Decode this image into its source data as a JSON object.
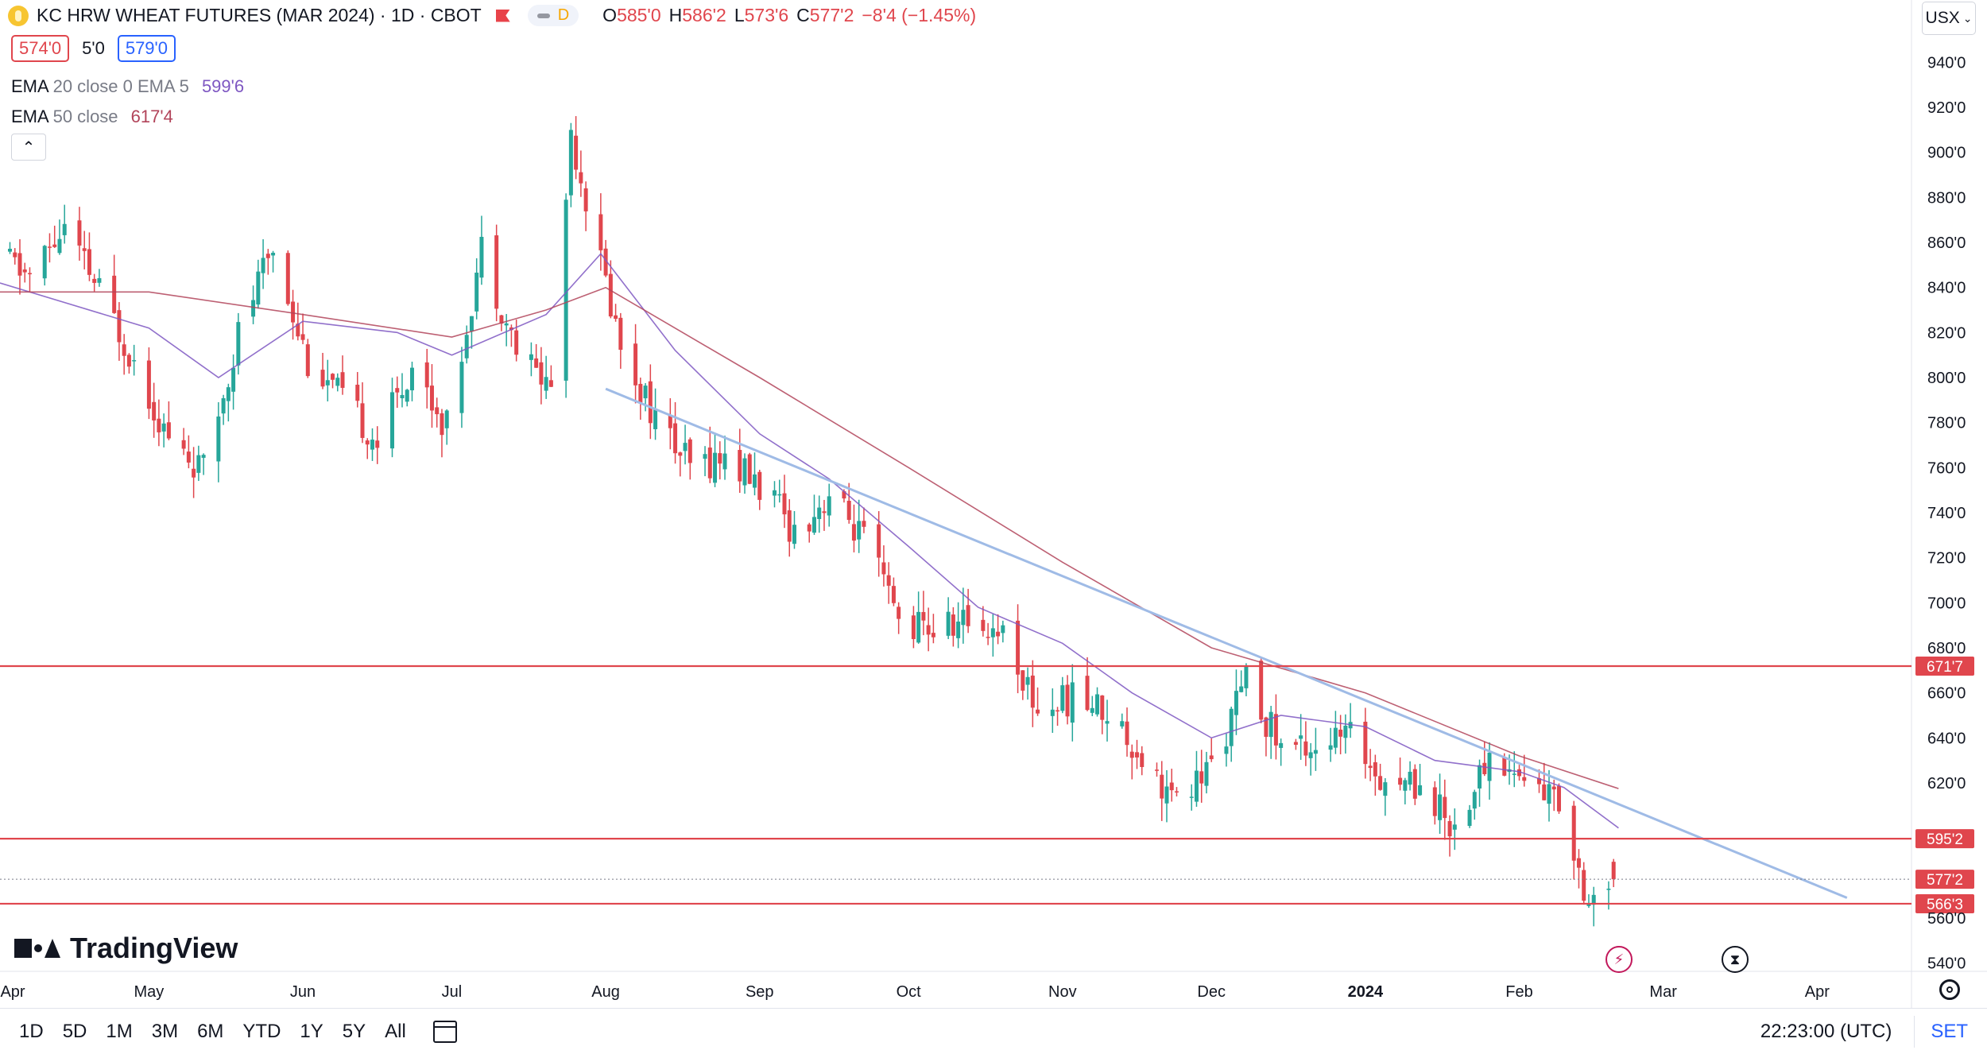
{
  "header": {
    "title": "KC HRW WHEAT FUTURES (MAR 2024) · 1D · CBOT",
    "status_letter": "D",
    "open_label": "O",
    "open": "585'0",
    "high_label": "H",
    "high": "586'2",
    "low_label": "L",
    "low": "573'6",
    "close_label": "C",
    "close": "577'2",
    "change": "−8'4 (−1.45%)"
  },
  "quote": {
    "bid": "574'0",
    "spread": "5'0",
    "ask": "579'0"
  },
  "indicators": [
    {
      "name": "EMA",
      "params": "20 close 0 EMA 5",
      "value": "599'6",
      "color": "#7e57c2"
    },
    {
      "name": "EMA",
      "params": "50 close",
      "value": "617'4",
      "color": "#b2445a"
    }
  ],
  "currency_button": "USX",
  "collapse_icon": "chevron-up-icon",
  "brand": "TradingView",
  "colors": {
    "up": "#26a69a",
    "down": "#e0464d",
    "level": "#e0464d",
    "trend": "#9fbbe6",
    "ema20": "#7e57c2",
    "ema50": "#b2445a"
  },
  "timeframes": [
    "1D",
    "5D",
    "1M",
    "3M",
    "6M",
    "YTD",
    "1Y",
    "5Y",
    "All"
  ],
  "footer": {
    "clock": "22:23:00 (UTC)",
    "set_label": "SET"
  },
  "chart_data": {
    "type": "candlestick",
    "title": "KC HRW WHEAT FUTURES (MAR 2024)",
    "y_unit": "cents/bushel",
    "ylim": [
      530,
      950
    ],
    "xlim": [
      "2023-04-01",
      "2024-04-20"
    ],
    "grid": false,
    "price_ticks": [
      "940'0",
      "920'0",
      "900'0",
      "880'0",
      "860'0",
      "840'0",
      "820'0",
      "800'0",
      "780'0",
      "760'0",
      "740'0",
      "720'0",
      "700'0",
      "680'0",
      "660'0",
      "640'0",
      "620'0",
      "600'0",
      "580'0",
      "560'0",
      "540'0"
    ],
    "time_ticks": [
      {
        "label": "Apr",
        "date": "2023-04-01"
      },
      {
        "label": "May",
        "date": "2023-05-01"
      },
      {
        "label": "Jun",
        "date": "2023-06-01"
      },
      {
        "label": "Jul",
        "date": "2023-07-01"
      },
      {
        "label": "Aug",
        "date": "2023-08-01"
      },
      {
        "label": "Sep",
        "date": "2023-09-01"
      },
      {
        "label": "Oct",
        "date": "2023-10-01"
      },
      {
        "label": "Nov",
        "date": "2023-11-01"
      },
      {
        "label": "Dec",
        "date": "2023-12-01"
      },
      {
        "label": "2024",
        "date": "2024-01-01",
        "bold": true
      },
      {
        "label": "Feb",
        "date": "2024-02-01"
      },
      {
        "label": "Mar",
        "date": "2024-03-01"
      },
      {
        "label": "Apr",
        "date": "2024-04-01"
      }
    ],
    "price_path": [
      [
        "2023-04-01",
        855
      ],
      [
        "2023-04-08",
        845
      ],
      [
        "2023-04-15",
        866
      ],
      [
        "2023-04-22",
        838
      ],
      [
        "2023-04-29",
        808
      ],
      [
        "2023-05-06",
        772
      ],
      [
        "2023-05-13",
        758
      ],
      [
        "2023-05-20",
        820
      ],
      [
        "2023-05-27",
        858
      ],
      [
        "2023-06-03",
        808
      ],
      [
        "2023-06-10",
        790
      ],
      [
        "2023-06-17",
        772
      ],
      [
        "2023-06-24",
        806
      ],
      [
        "2023-07-01",
        778
      ],
      [
        "2023-07-08",
        858
      ],
      [
        "2023-07-15",
        812
      ],
      [
        "2023-07-22",
        796
      ],
      [
        "2023-07-26",
        910
      ],
      [
        "2023-07-31",
        860
      ],
      [
        "2023-08-05",
        815
      ],
      [
        "2023-08-12",
        782
      ],
      [
        "2023-08-19",
        760
      ],
      [
        "2023-08-26",
        765
      ],
      [
        "2023-09-02",
        752
      ],
      [
        "2023-09-09",
        732
      ],
      [
        "2023-09-16",
        748
      ],
      [
        "2023-09-23",
        728
      ],
      [
        "2023-09-30",
        692
      ],
      [
        "2023-10-07",
        688
      ],
      [
        "2023-10-14",
        692
      ],
      [
        "2023-10-21",
        688
      ],
      [
        "2023-10-28",
        652
      ],
      [
        "2023-11-04",
        658
      ],
      [
        "2023-11-11",
        652
      ],
      [
        "2023-11-18",
        632
      ],
      [
        "2023-11-25",
        610
      ],
      [
        "2023-12-02",
        628
      ],
      [
        "2023-12-09",
        665
      ],
      [
        "2023-12-16",
        636
      ],
      [
        "2023-12-23",
        638
      ],
      [
        "2023-12-30",
        640
      ],
      [
        "2024-01-06",
        622
      ],
      [
        "2024-01-13",
        620
      ],
      [
        "2024-01-20",
        600
      ],
      [
        "2024-01-27",
        632
      ],
      [
        "2024-02-03",
        622
      ],
      [
        "2024-02-10",
        612
      ],
      [
        "2024-02-16",
        568
      ],
      [
        "2024-02-21",
        577.25
      ]
    ],
    "last_candle": {
      "open": 585.0,
      "high": 586.25,
      "low": 573.75,
      "close": 577.25
    },
    "series": [
      {
        "name": "EMA 20",
        "values": [
          [
            "2023-04-01",
            842
          ],
          [
            "2023-05-01",
            822
          ],
          [
            "2023-05-15",
            800
          ],
          [
            "2023-06-01",
            825
          ],
          [
            "2023-06-20",
            820
          ],
          [
            "2023-07-01",
            810
          ],
          [
            "2023-07-20",
            828
          ],
          [
            "2023-07-31",
            855
          ],
          [
            "2023-08-15",
            812
          ],
          [
            "2023-09-01",
            775
          ],
          [
            "2023-09-15",
            755
          ],
          [
            "2023-10-01",
            725
          ],
          [
            "2023-10-15",
            698
          ],
          [
            "2023-11-01",
            682
          ],
          [
            "2023-11-15",
            660
          ],
          [
            "2023-12-01",
            640
          ],
          [
            "2023-12-15",
            650
          ],
          [
            "2024-01-01",
            645
          ],
          [
            "2024-01-15",
            630
          ],
          [
            "2024-02-01",
            625
          ],
          [
            "2024-02-10",
            618
          ],
          [
            "2024-02-21",
            600
          ]
        ]
      },
      {
        "name": "EMA 50",
        "values": [
          [
            "2023-04-01",
            838
          ],
          [
            "2023-05-01",
            838
          ],
          [
            "2023-06-01",
            828
          ],
          [
            "2023-07-01",
            818
          ],
          [
            "2023-07-20",
            830
          ],
          [
            "2023-08-01",
            840
          ],
          [
            "2023-09-01",
            800
          ],
          [
            "2023-10-01",
            760
          ],
          [
            "2023-11-01",
            718
          ],
          [
            "2023-12-01",
            680
          ],
          [
            "2024-01-01",
            660
          ],
          [
            "2024-02-01",
            632
          ],
          [
            "2024-02-21",
            617.5
          ]
        ]
      }
    ],
    "trend_line": {
      "from": [
        "2023-08-01",
        795
      ],
      "to": [
        "2024-04-07",
        569
      ]
    },
    "levels": [
      "671'7",
      "595'2",
      "566'3"
    ],
    "last_price_label": "577'2"
  }
}
